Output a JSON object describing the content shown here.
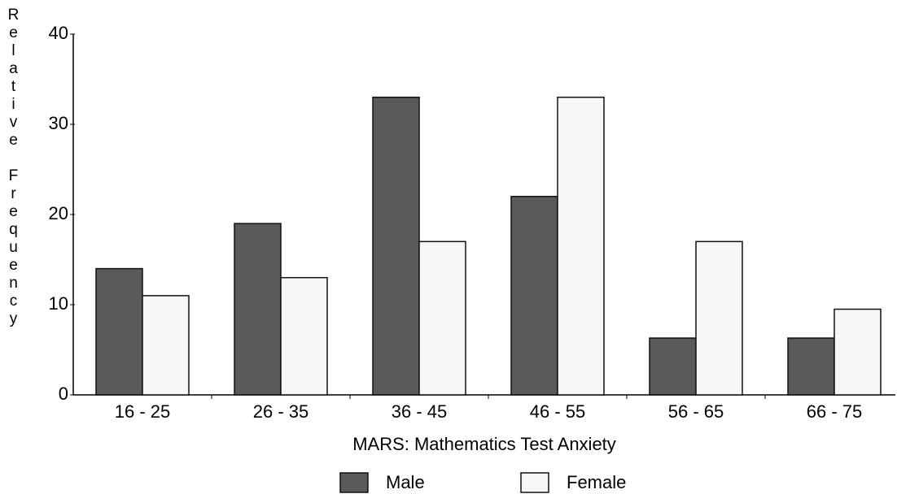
{
  "chart_data": {
    "type": "bar",
    "x_label": "MARS: Mathematics Test Anxiety",
    "y_label": "Relative Frequency",
    "categories": [
      "16 - 25",
      "26 - 35",
      "36 - 45",
      "46 - 55",
      "56 - 65",
      "66 - 75"
    ],
    "series": [
      {
        "name": "Male",
        "color": "#5a5a5a",
        "values": [
          14,
          19,
          33,
          22,
          6.3,
          6.3
        ]
      },
      {
        "name": "Female",
        "color": "#f7f7f7",
        "values": [
          11,
          13,
          17,
          33,
          17,
          9.5
        ]
      }
    ],
    "ylim": [
      0,
      40
    ],
    "yticks": [
      0,
      10,
      20,
      30,
      40
    ],
    "grid": false,
    "legend": "bottom"
  }
}
